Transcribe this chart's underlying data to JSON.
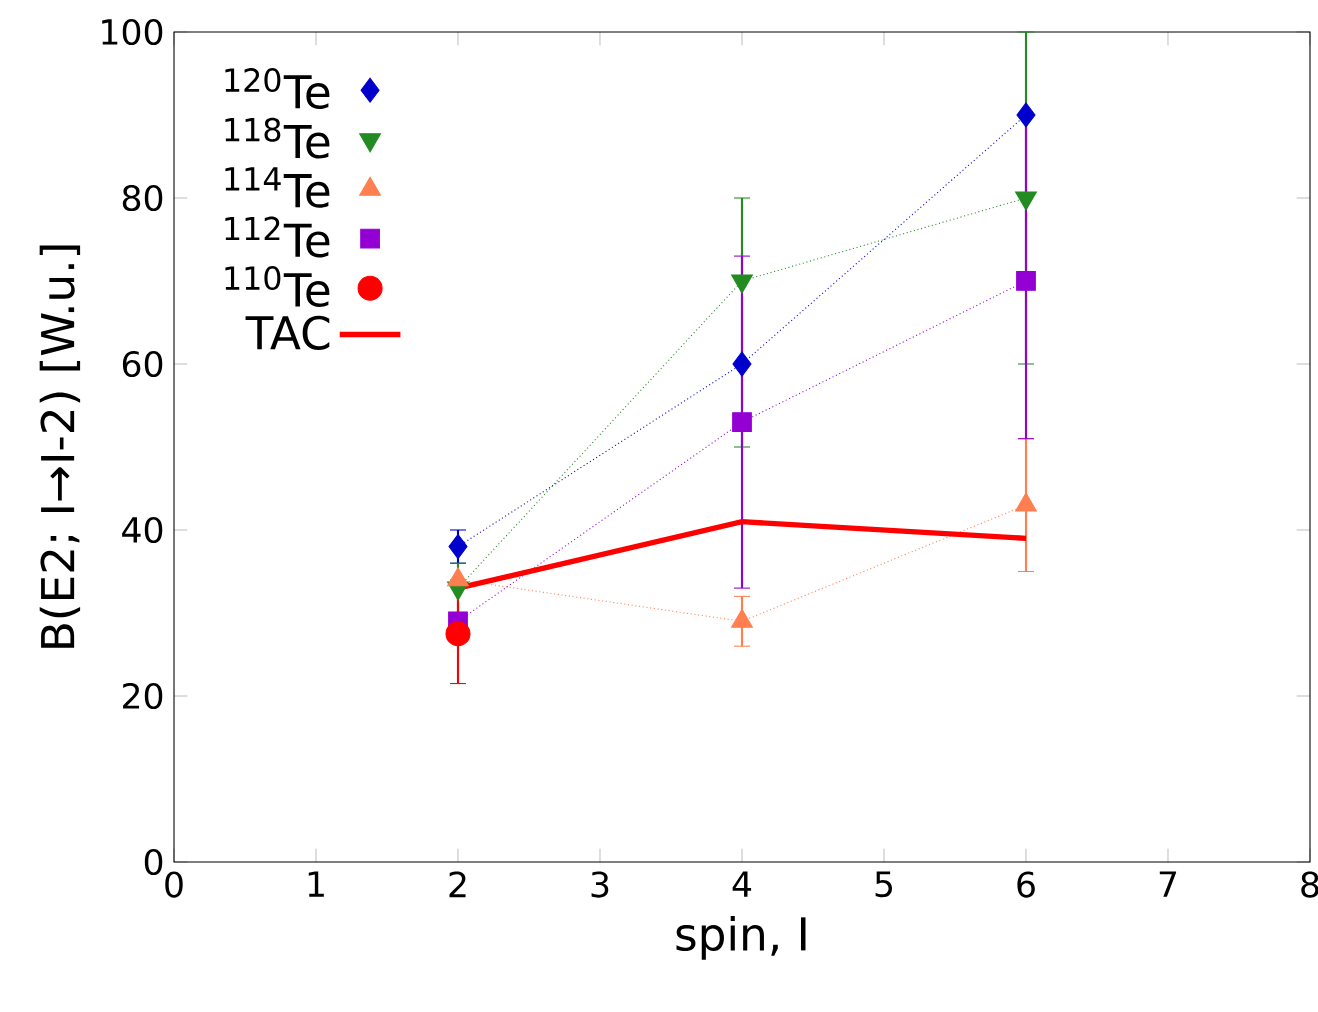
{
  "chart_data": {
    "type": "line",
    "xlabel": "spin, I",
    "ylabel": "B(E2; I→I-2) [W.u.]",
    "xlim": [
      0,
      8
    ],
    "ylim": [
      0,
      100
    ],
    "xticks": [
      0,
      1,
      2,
      3,
      4,
      5,
      6,
      7,
      8
    ],
    "yticks": [
      0,
      20,
      40,
      60,
      80,
      100
    ],
    "grid": false,
    "legend": "top left",
    "series": [
      {
        "name": "$^{120}$Te",
        "color": "#0000cc",
        "x": [
          2,
          4,
          6
        ],
        "values": [
          38,
          60,
          90
        ],
        "errors": [
          2,
          null,
          null
        ],
        "marker": "diamond",
        "line_style": "dotted"
      },
      {
        "name": "$^{118}$Te",
        "color": "#228b22",
        "x": [
          2,
          4,
          6
        ],
        "values": [
          33,
          70,
          80
        ],
        "errors": [
          3,
          [
            50,
            80
          ],
          [
            60,
            100
          ]
        ],
        "marker": "triangle-down",
        "line_style": "dotted"
      },
      {
        "name": "$^{114}$Te",
        "color": "#ff7f50",
        "x": [
          2,
          4,
          6
        ],
        "values": [
          34,
          29,
          43
        ],
        "errors": [
          null,
          3,
          8
        ],
        "marker": "triangle",
        "line_style": "dotted"
      },
      {
        "name": "$^{112}$Te",
        "color": "#9400d3",
        "x": [
          2,
          4,
          6
        ],
        "values": [
          29,
          53,
          70
        ],
        "errors": [
          null,
          20,
          [
            51,
            90
          ]
        ],
        "marker": "square",
        "line_style": "dotted"
      },
      {
        "name": "$^{110}$Te",
        "color": "#ff0000",
        "x": [
          2
        ],
        "values": [
          27.5
        ],
        "errors": [
          6
        ],
        "marker": "circle",
        "line_style": "none"
      },
      {
        "name": "TAC",
        "color": "#ff0000",
        "x": [
          2,
          4,
          6
        ],
        "values": [
          33,
          41,
          39
        ],
        "marker": "none",
        "line_style": "solid"
      }
    ]
  }
}
